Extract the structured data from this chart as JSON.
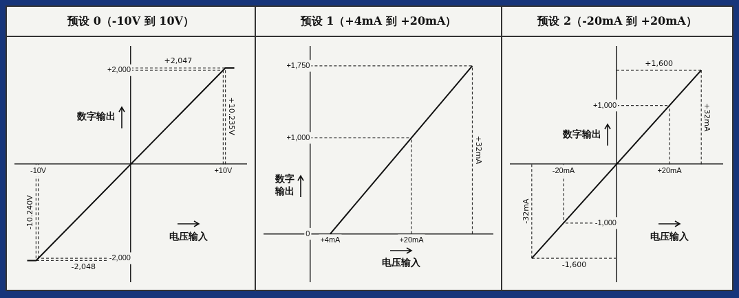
{
  "chart_data": [
    {
      "type": "line",
      "title": "预设 0（-10V 到 10V）",
      "xlabel": "电压输入",
      "ylabel": "数字输出",
      "xlim": [
        -12.5,
        12.5
      ],
      "ylim": [
        -2500,
        2500
      ],
      "xticks": [
        {
          "value": -10,
          "label": "-10V"
        },
        {
          "value": 10,
          "label": "+10V"
        }
      ],
      "yticks": [
        {
          "value": -2000,
          "label": "-2,000"
        },
        {
          "value": 2000,
          "label": "+2,000"
        }
      ],
      "series": [
        {
          "color": "#111111",
          "x": [
            -11.2,
            -10.24,
            10.235,
            11.2
          ],
          "values": [
            -2048,
            -2048,
            2047,
            2047
          ]
        }
      ],
      "ref_lines": [
        {
          "axis": "x",
          "value": -10.24,
          "label": "-10.240V",
          "line_style": "dashed",
          "color": "#333333"
        },
        {
          "axis": "x",
          "value": -10,
          "line_style": "dashed",
          "color": "#333333"
        },
        {
          "axis": "x",
          "value": 10,
          "line_style": "dashed",
          "color": "#333333"
        },
        {
          "axis": "x",
          "value": 10.235,
          "label": "+10.235V",
          "line_style": "dashed",
          "color": "#333333"
        },
        {
          "axis": "y",
          "value": 2047,
          "label": "+2,047",
          "line_style": "dashed",
          "color": "#333333"
        },
        {
          "axis": "y",
          "value": 2000,
          "line_style": "dashed",
          "color": "#333333"
        },
        {
          "axis": "y",
          "value": -2000,
          "line_style": "dashed",
          "color": "#333333"
        },
        {
          "axis": "y",
          "value": -2048,
          "label": "-2,048",
          "line_style": "dashed",
          "color": "#333333"
        }
      ]
    },
    {
      "type": "line",
      "title": "预设 1（+4mA 到 +20mA）",
      "xlabel": "电压输入",
      "ylabel": "数字输出",
      "xlim": [
        -9,
        36
      ],
      "ylim": [
        -500,
        1950
      ],
      "xticks": [
        {
          "value": 4,
          "label": "+4mA"
        },
        {
          "value": 20,
          "label": "+20mA"
        }
      ],
      "yticks": [
        0,
        {
          "value": 1000,
          "label": "+1,000"
        },
        {
          "value": 1750,
          "label": "+1,750"
        }
      ],
      "series": [
        {
          "color": "#111111",
          "x": [
            4,
            32
          ],
          "values": [
            0,
            1750
          ]
        }
      ],
      "ref_lines": [
        {
          "axis": "x",
          "value": 20,
          "line_style": "dashed",
          "color": "#333333"
        },
        {
          "axis": "x",
          "value": 32,
          "label": "+32mA",
          "line_style": "dashed",
          "color": "#333333"
        },
        {
          "axis": "y",
          "value": 1750,
          "line_style": "dashed",
          "color": "#333333"
        },
        {
          "axis": "y",
          "value": 1000,
          "line_style": "dashed",
          "color": "#333333"
        }
      ]
    },
    {
      "type": "line",
      "title": "预设 2（-20mA 到 +20mA）",
      "xlabel": "电压输入",
      "ylabel": "数字输出",
      "xlim": [
        -40,
        40
      ],
      "ylim": [
        -2000,
        2000
      ],
      "xticks": [
        {
          "value": -20,
          "label": "-20mA"
        },
        {
          "value": 20,
          "label": "+20mA"
        }
      ],
      "yticks": [
        {
          "value": -1000,
          "label": "-1,000"
        },
        {
          "value": 1000,
          "label": "+1,000"
        }
      ],
      "series": [
        {
          "color": "#111111",
          "x": [
            -32,
            32
          ],
          "values": [
            -1600,
            1600
          ]
        }
      ],
      "ref_lines": [
        {
          "axis": "x",
          "value": -32,
          "label": "-32mA",
          "line_style": "dashed",
          "color": "#333333"
        },
        {
          "axis": "x",
          "value": -20,
          "line_style": "dashed",
          "color": "#333333"
        },
        {
          "axis": "x",
          "value": 20,
          "line_style": "dashed",
          "color": "#333333"
        },
        {
          "axis": "x",
          "value": 32,
          "label": "+32mA",
          "line_style": "dashed",
          "color": "#333333"
        },
        {
          "axis": "y",
          "value": 1600,
          "label": "+1,600",
          "line_style": "dashed",
          "color": "#333333"
        },
        {
          "axis": "y",
          "value": 1000,
          "line_style": "dashed",
          "color": "#333333"
        },
        {
          "axis": "y",
          "value": -1000,
          "line_style": "dashed",
          "color": "#333333"
        },
        {
          "axis": "y",
          "value": -1600,
          "label": "-1,600",
          "line_style": "dashed",
          "color": "#333333"
        }
      ]
    }
  ]
}
